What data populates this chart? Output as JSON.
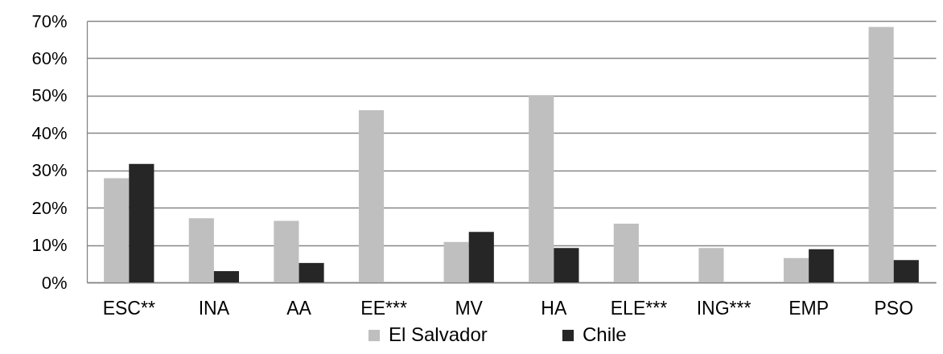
{
  "chart_data": {
    "type": "bar",
    "categories": [
      "ESC**",
      "INA",
      "AA",
      "EE***",
      "MV",
      "HA",
      "ELE***",
      "ING***",
      "EMP",
      "PSO"
    ],
    "series": [
      {
        "name": "El Salvador",
        "color": "#bfbfbf",
        "values": [
          27.9,
          17.2,
          16.5,
          46.1,
          10.8,
          50.1,
          15.7,
          9.2,
          6.5,
          68.4
        ]
      },
      {
        "name": "Chile",
        "color": "#262626",
        "values": [
          31.7,
          3.0,
          5.2,
          null,
          13.5,
          9.2,
          null,
          null,
          8.9,
          6.0
        ]
      }
    ],
    "ylim": [
      0,
      70
    ],
    "yticks": [
      {
        "value": 0,
        "label": "0%"
      },
      {
        "value": 10,
        "label": "10%"
      },
      {
        "value": 20,
        "label": "20%"
      },
      {
        "value": 30,
        "label": "30%"
      },
      {
        "value": 40,
        "label": "40%"
      },
      {
        "value": 50,
        "label": "50%"
      },
      {
        "value": 60,
        "label": "60%"
      },
      {
        "value": 70,
        "label": "70%"
      }
    ],
    "grid": "y",
    "legend": "bottom"
  }
}
